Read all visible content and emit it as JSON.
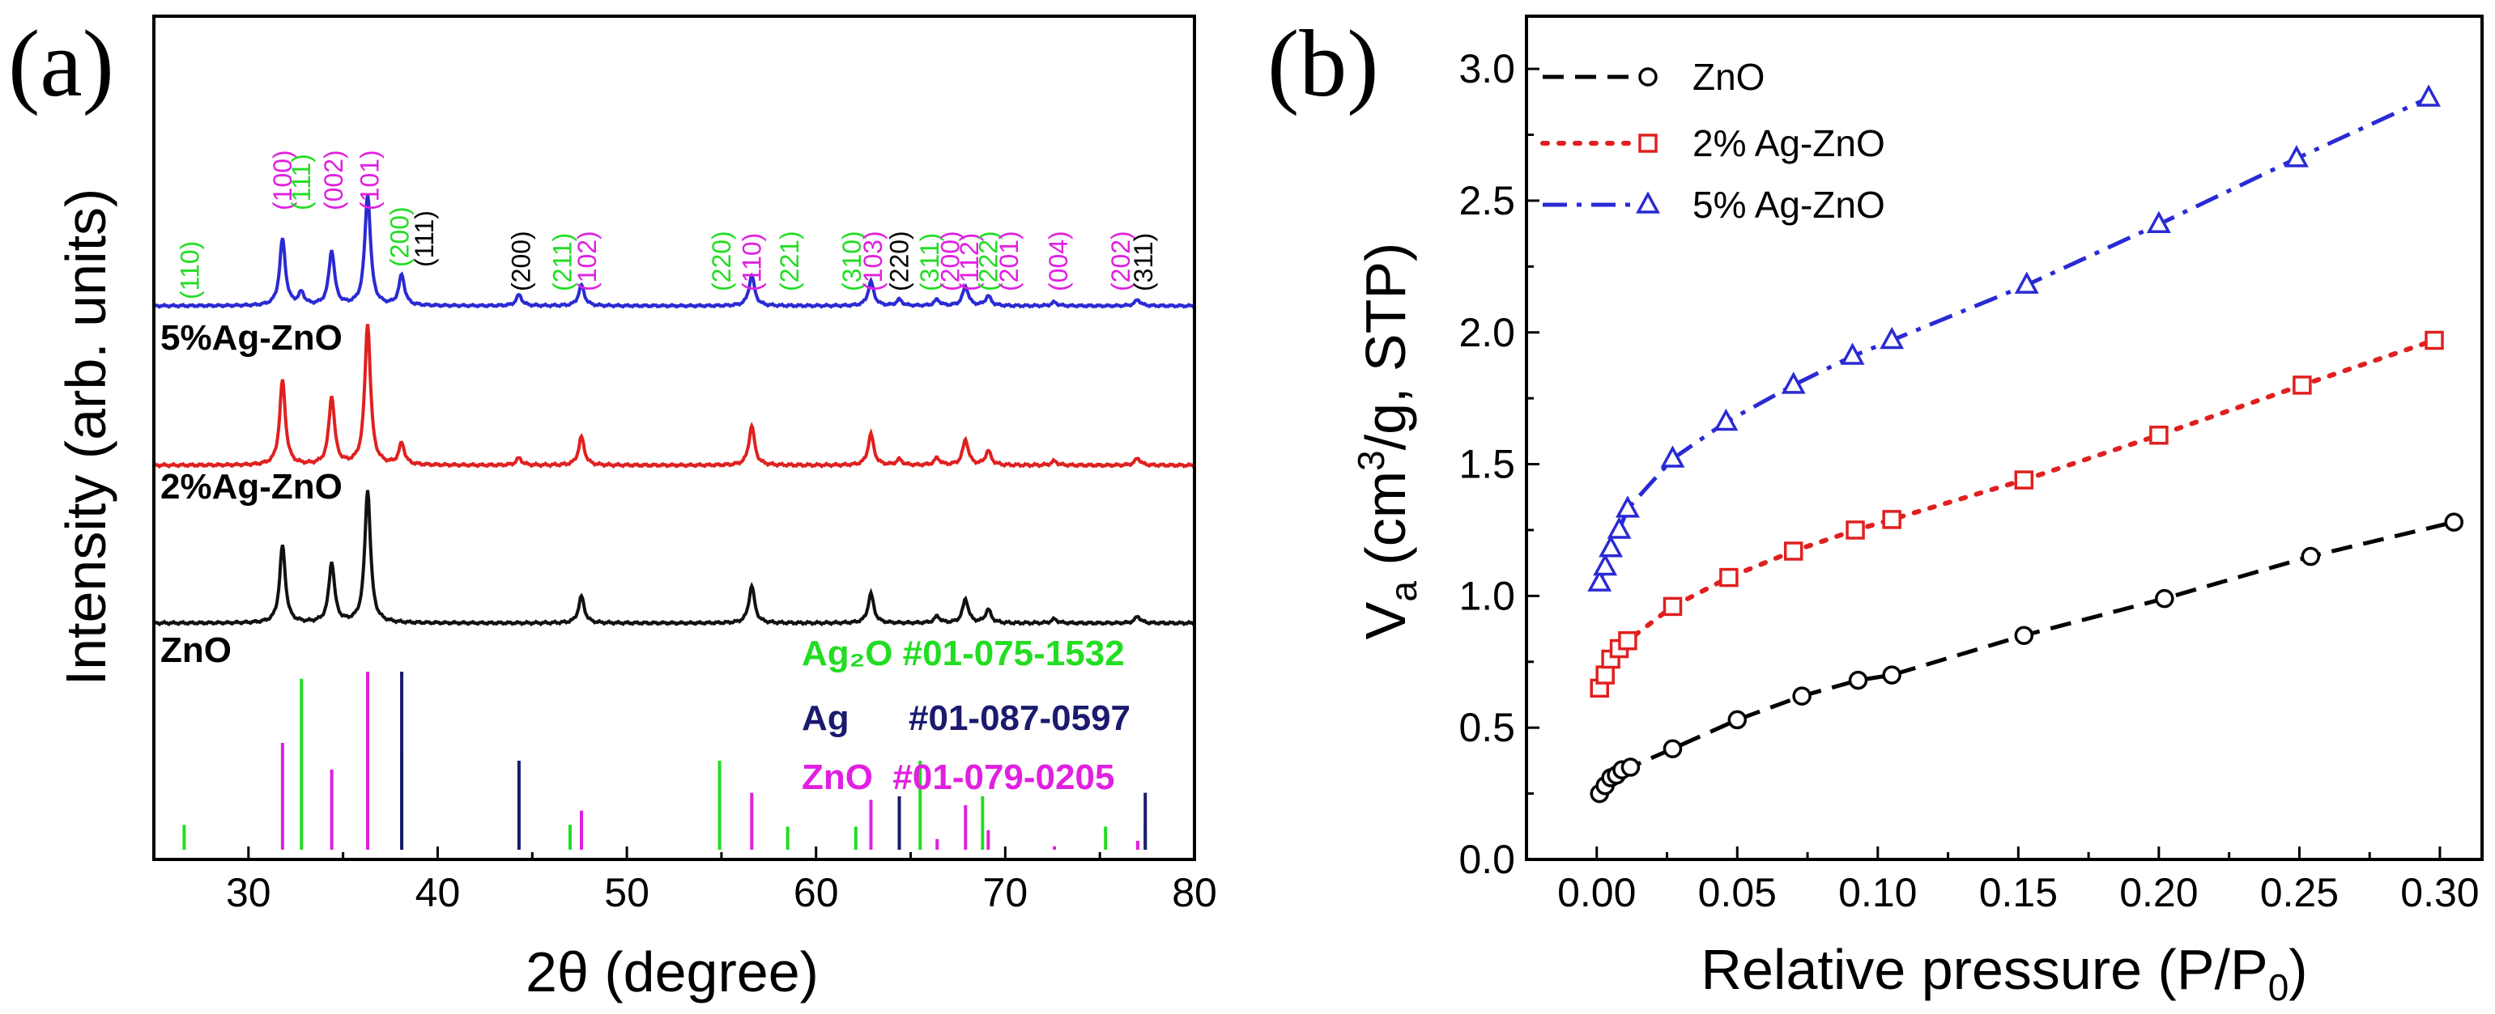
{
  "figure": {
    "panel_a_label": "(a)",
    "panel_b_label": "(b)"
  },
  "chart_data": [
    {
      "type": "line",
      "panel": "(a)",
      "title": "",
      "xlabel": "2θ (degree)",
      "ylabel": "Intensity (arb. units)",
      "xlim": [
        25,
        80
      ],
      "xticks": [
        30,
        40,
        50,
        60,
        70,
        80
      ],
      "grid": false,
      "series": [
        {
          "name": "5%Ag-ZnO",
          "color": "#2a2ad4",
          "peaks": [
            {
              "x": 31.8,
              "h": 0.55
            },
            {
              "x": 32.8,
              "h": 0.1
            },
            {
              "x": 34.4,
              "h": 0.45
            },
            {
              "x": 36.3,
              "h": 0.92
            },
            {
              "x": 38.1,
              "h": 0.25
            },
            {
              "x": 44.3,
              "h": 0.09
            },
            {
              "x": 47.6,
              "h": 0.17
            },
            {
              "x": 56.6,
              "h": 0.25
            },
            {
              "x": 62.9,
              "h": 0.2
            },
            {
              "x": 64.4,
              "h": 0.05
            },
            {
              "x": 66.4,
              "h": 0.05
            },
            {
              "x": 67.9,
              "h": 0.16
            },
            {
              "x": 69.1,
              "h": 0.08
            },
            {
              "x": 72.6,
              "h": 0.03
            },
            {
              "x": 77.0,
              "h": 0.05
            }
          ]
        },
        {
          "name": "2%Ag-ZnO",
          "color": "#e02020",
          "peaks": [
            {
              "x": 31.8,
              "h": 0.6
            },
            {
              "x": 34.4,
              "h": 0.48
            },
            {
              "x": 36.3,
              "h": 1.0
            },
            {
              "x": 38.1,
              "h": 0.15
            },
            {
              "x": 44.3,
              "h": 0.05
            },
            {
              "x": 47.6,
              "h": 0.2
            },
            {
              "x": 56.6,
              "h": 0.28
            },
            {
              "x": 62.9,
              "h": 0.22
            },
            {
              "x": 64.4,
              "h": 0.04
            },
            {
              "x": 66.4,
              "h": 0.05
            },
            {
              "x": 67.9,
              "h": 0.18
            },
            {
              "x": 69.1,
              "h": 0.1
            },
            {
              "x": 72.6,
              "h": 0.03
            },
            {
              "x": 77.0,
              "h": 0.05
            }
          ]
        },
        {
          "name": "ZnO",
          "color": "#111111",
          "peaks": [
            {
              "x": 31.8,
              "h": 0.58
            },
            {
              "x": 34.4,
              "h": 0.45
            },
            {
              "x": 36.3,
              "h": 1.0
            },
            {
              "x": 47.6,
              "h": 0.2
            },
            {
              "x": 56.6,
              "h": 0.28
            },
            {
              "x": 62.9,
              "h": 0.22
            },
            {
              "x": 66.4,
              "h": 0.05
            },
            {
              "x": 67.9,
              "h": 0.18
            },
            {
              "x": 69.1,
              "h": 0.1
            },
            {
              "x": 72.6,
              "h": 0.03
            },
            {
              "x": 77.0,
              "h": 0.05
            }
          ]
        }
      ],
      "peak_labels": [
        {
          "text": "(110)",
          "x": 26.9,
          "color": "#22dd22",
          "rotate": true
        },
        {
          "text": "(100)",
          "x": 31.8,
          "color": "#e020e0",
          "rotate": true
        },
        {
          "text": "(111)",
          "x": 32.8,
          "color": "#22dd22",
          "rotate": true
        },
        {
          "text": "(002)",
          "x": 34.5,
          "color": "#e020e0",
          "rotate": true
        },
        {
          "text": "(101)",
          "x": 36.4,
          "color": "#e020e0",
          "rotate": true
        },
        {
          "text": "(200)",
          "x": 38.0,
          "color": "#22dd22",
          "rotate": true
        },
        {
          "text": "(111)",
          "x": 39.3,
          "color": "#000000",
          "rotate": true
        },
        {
          "text": "(200)",
          "x": 44.4,
          "color": "#000000",
          "rotate": true
        },
        {
          "text": "(211)",
          "x": 46.6,
          "color": "#22dd22",
          "rotate": true
        },
        {
          "text": "(102)",
          "x": 47.9,
          "color": "#e020e0",
          "rotate": true
        },
        {
          "text": "(220)",
          "x": 55.0,
          "color": "#22dd22",
          "rotate": true
        },
        {
          "text": "(110)",
          "x": 56.6,
          "color": "#e020e0",
          "rotate": true
        },
        {
          "text": "(221)",
          "x": 58.6,
          "color": "#22dd22",
          "rotate": true
        },
        {
          "text": "(310)",
          "x": 61.9,
          "color": "#22dd22",
          "rotate": true
        },
        {
          "text": "(103)",
          "x": 63.0,
          "color": "#e020e0",
          "rotate": true
        },
        {
          "text": "(220)",
          "x": 64.4,
          "color": "#000000",
          "rotate": true
        },
        {
          "text": "(311)",
          "x": 66.0,
          "color": "#22dd22",
          "rotate": true
        },
        {
          "text": "(200)",
          "x": 67.1,
          "color": "#e020e0",
          "rotate": true
        },
        {
          "text": "(112)",
          "x": 68.1,
          "color": "#e020e0",
          "rotate": true
        },
        {
          "text": "(222)",
          "x": 69.1,
          "color": "#22dd22",
          "rotate": true
        },
        {
          "text": "(201)",
          "x": 70.2,
          "color": "#e020e0",
          "rotate": true
        },
        {
          "text": "(004)",
          "x": 72.8,
          "color": "#e020e0",
          "rotate": true
        },
        {
          "text": "(202)",
          "x": 76.1,
          "color": "#e020e0",
          "rotate": true
        },
        {
          "text": "(311)",
          "x": 77.3,
          "color": "#000000",
          "rotate": true
        }
      ],
      "reference_cards": [
        {
          "name": "Ag2O",
          "display": "Ag₂O #01-075-1532",
          "color": "#22dd22",
          "sticks": [
            {
              "x": 26.6,
              "h": 0.14
            },
            {
              "x": 32.8,
              "h": 0.96
            },
            {
              "x": 38.1,
              "h": 0.55
            },
            {
              "x": 47.0,
              "h": 0.14
            },
            {
              "x": 54.9,
              "h": 0.5
            },
            {
              "x": 58.5,
              "h": 0.13
            },
            {
              "x": 62.1,
              "h": 0.13
            },
            {
              "x": 65.5,
              "h": 0.5
            },
            {
              "x": 68.8,
              "h": 0.3
            },
            {
              "x": 75.3,
              "h": 0.13
            },
            {
              "x": 77.4,
              "h": 0.13
            }
          ]
        },
        {
          "name": "Ag",
          "display": "Ag      #01-087-0597",
          "color": "#1a1a6e",
          "sticks": [
            {
              "x": 38.1,
              "h": 1.0
            },
            {
              "x": 44.3,
              "h": 0.5
            },
            {
              "x": 64.4,
              "h": 0.3
            },
            {
              "x": 77.4,
              "h": 0.32
            }
          ]
        },
        {
          "name": "ZnO",
          "display": "ZnO  #01-079-0205",
          "color": "#e020e0",
          "sticks": [
            {
              "x": 31.8,
              "h": 0.6
            },
            {
              "x": 34.4,
              "h": 0.45
            },
            {
              "x": 36.3,
              "h": 1.0
            },
            {
              "x": 47.6,
              "h": 0.22
            },
            {
              "x": 56.6,
              "h": 0.32
            },
            {
              "x": 62.9,
              "h": 0.28
            },
            {
              "x": 66.4,
              "h": 0.06
            },
            {
              "x": 67.9,
              "h": 0.25
            },
            {
              "x": 69.1,
              "h": 0.11
            },
            {
              "x": 72.6,
              "h": 0.02
            },
            {
              "x": 77.0,
              "h": 0.05
            }
          ]
        }
      ]
    },
    {
      "type": "line",
      "panel": "(b)",
      "title": "",
      "xlabel_main": "Relative pressure (P/P",
      "xlabel_sub": "0",
      "xlabel_close": ")",
      "ylabel_v": "V",
      "ylabel_v_sub": "a",
      "ylabel_main": " (cm",
      "ylabel_sup": "3",
      "ylabel_rest": "/g, STP)",
      "xlim": [
        -0.025,
        0.315
      ],
      "ylim": [
        0.0,
        3.2
      ],
      "xticks": [
        0.0,
        0.05,
        0.1,
        0.15,
        0.2,
        0.25,
        0.3
      ],
      "xtick_labels": [
        "0.00",
        "0.05",
        "0.10",
        "0.15",
        "0.20",
        "0.25",
        "0.30"
      ],
      "yticks": [
        0.0,
        0.5,
        1.0,
        1.5,
        2.0,
        2.5,
        3.0
      ],
      "ytick_labels": [
        "0.0",
        "0.5",
        "1.0",
        "1.5",
        "2.0",
        "2.5",
        "3.0"
      ],
      "grid": false,
      "legend_position": "top-left",
      "series": [
        {
          "name": "ZnO",
          "color": "#000000",
          "marker": "circle",
          "dash": "long-dash",
          "x": [
            0.001,
            0.003,
            0.005,
            0.007,
            0.009,
            0.012,
            0.027,
            0.05,
            0.073,
            0.093,
            0.105,
            0.152,
            0.202,
            0.254,
            0.305
          ],
          "y": [
            0.25,
            0.28,
            0.31,
            0.32,
            0.34,
            0.35,
            0.42,
            0.53,
            0.62,
            0.68,
            0.7,
            0.85,
            0.99,
            1.15,
            1.28
          ]
        },
        {
          "name": "2% Ag-ZnO",
          "color": "#e02020",
          "marker": "square",
          "dash": "dot",
          "x": [
            0.001,
            0.003,
            0.005,
            0.008,
            0.011,
            0.027,
            0.047,
            0.07,
            0.092,
            0.105,
            0.152,
            0.2,
            0.251,
            0.298
          ],
          "y": [
            0.65,
            0.7,
            0.76,
            0.8,
            0.83,
            0.96,
            1.07,
            1.17,
            1.25,
            1.29,
            1.44,
            1.61,
            1.8,
            1.97
          ]
        },
        {
          "name": "5% Ag-ZnO",
          "color": "#2a2ad4",
          "marker": "triangle",
          "dash": "dash-dot",
          "x": [
            0.001,
            0.003,
            0.005,
            0.008,
            0.011,
            0.027,
            0.046,
            0.07,
            0.091,
            0.105,
            0.153,
            0.2,
            0.249,
            0.296
          ],
          "y": [
            1.05,
            1.11,
            1.18,
            1.25,
            1.33,
            1.52,
            1.66,
            1.8,
            1.91,
            1.97,
            2.18,
            2.41,
            2.66,
            2.89
          ]
        }
      ]
    }
  ]
}
